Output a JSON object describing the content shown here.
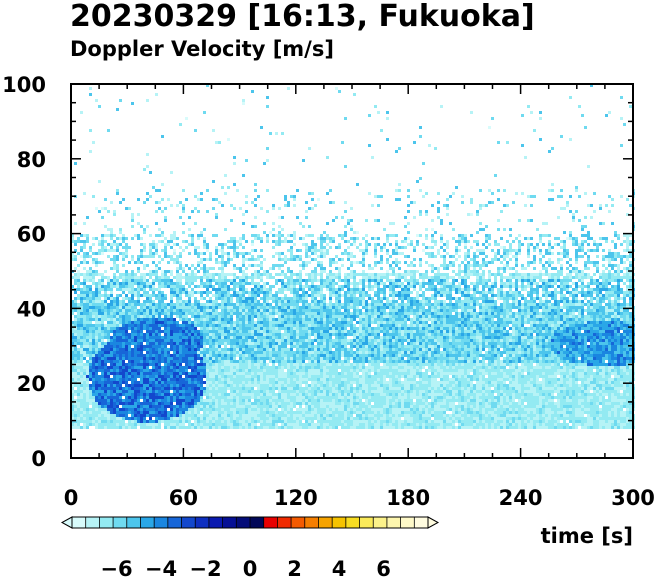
{
  "title": "20230329 [16:13, Fukuoka]",
  "subtitle": "Doppler Velocity [m/s]",
  "chart_data": {
    "type": "heatmap",
    "title": "20230329 [16:13, Fukuoka]",
    "subtitle": "Doppler Velocity [m/s]",
    "xlabel": "time [s]",
    "ylabel": "",
    "xlim": [
      0,
      300
    ],
    "ylim": [
      0,
      100
    ],
    "x_ticks": [
      0,
      60,
      120,
      180,
      240,
      300
    ],
    "y_ticks": [
      0,
      20,
      40,
      60,
      80,
      100
    ],
    "x_tick_labels": [
      "0",
      "60",
      "120",
      "180",
      "240",
      "300"
    ],
    "y_tick_labels": [
      "0",
      "20",
      "40",
      "60",
      "80",
      "100"
    ],
    "grid": false,
    "data_y_range": [
      8,
      100
    ],
    "colorbar": {
      "min": -8,
      "max": 8,
      "tick_values": [
        -6,
        -4,
        -2,
        0,
        2,
        4,
        6
      ],
      "tick_labels": [
        "−6",
        "−4",
        "−2",
        "0",
        "2",
        "4",
        "6"
      ],
      "colors": [
        "#d8fbfb",
        "#b6f3f6",
        "#93eaf2",
        "#6fdaf0",
        "#4cc5ec",
        "#2aa7e7",
        "#1a86e0",
        "#1766d8",
        "#1348cd",
        "#0e2fc0",
        "#0a1ab0",
        "#061095",
        "#040c78",
        "#020858",
        "#e80000",
        "#f02a00",
        "#f45a00",
        "#f57e00",
        "#f6a300",
        "#f6c300",
        "#f8dd22",
        "#faea5a",
        "#fcf28a",
        "#fdf6ae",
        "#fef9c8",
        "#fffce0"
      ]
    },
    "regions": [
      {
        "x": [
          0,
          300
        ],
        "y": [
          8,
          50
        ],
        "velocity": -6.5
      },
      {
        "x": [
          10,
          75
        ],
        "y": [
          12,
          35
        ],
        "velocity": -3.5
      },
      {
        "x": [
          100,
          300
        ],
        "y": [
          28,
          45
        ],
        "velocity": -4.5
      }
    ]
  }
}
